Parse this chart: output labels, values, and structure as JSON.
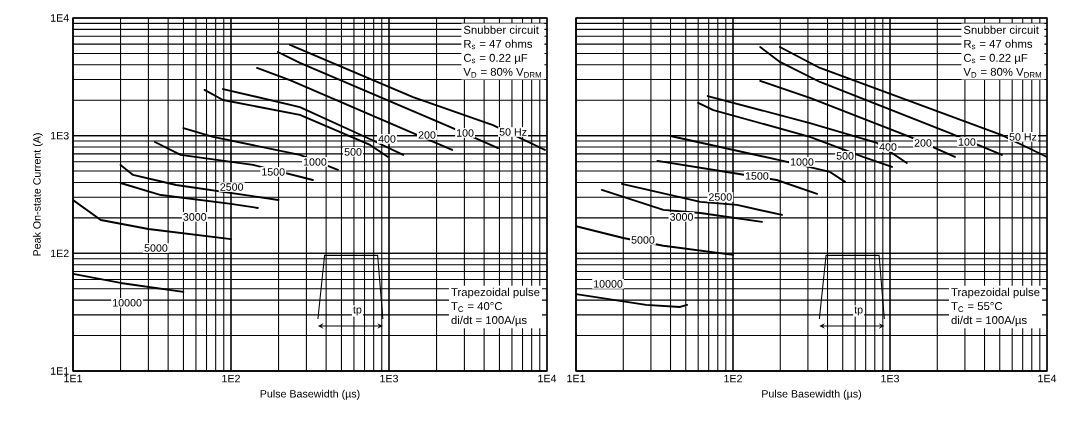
{
  "chart_data": [
    {
      "type": "line",
      "xlabel": "Pulse Basewidth (µs)",
      "ylabel": "Peak On-state Current (A)",
      "log": "xy",
      "grid": true,
      "marker": "none",
      "line_style": "solid",
      "xlim": [
        10,
        10000
      ],
      "ylim": [
        10,
        10000
      ],
      "xticks": [
        {
          "value": 10,
          "label": "1E1"
        },
        {
          "value": 100,
          "label": "1E2"
        },
        {
          "value": 1000,
          "label": "1E3"
        },
        {
          "value": 10000,
          "label": "1E4"
        }
      ],
      "yticks": [
        {
          "value": 10,
          "label": "1E1"
        },
        {
          "value": 100,
          "label": "1E2"
        },
        {
          "value": 1000,
          "label": "1E3"
        },
        {
          "value": 10000,
          "label": "1E4"
        }
      ],
      "series": [
        {
          "color": "#000000",
          "x": [
            10,
            20,
            50
          ],
          "values": [
            67,
            56,
            47
          ]
        },
        {
          "color": "#000000",
          "x": [
            10,
            15,
            30,
            100
          ],
          "values": [
            284,
            192,
            161,
            132
          ]
        },
        {
          "color": "#000000",
          "x": [
            20,
            36,
            100,
            148
          ],
          "values": [
            396,
            313,
            263,
            243
          ]
        },
        {
          "color": "#000000",
          "x": [
            20,
            24,
            45,
            200
          ],
          "values": [
            564,
            464,
            381,
            284
          ]
        },
        {
          "color": "#000000",
          "x": [
            33,
            48,
            138,
            330
          ],
          "values": [
            884,
            686,
            564,
            420
          ]
        },
        {
          "color": "#000000",
          "x": [
            50,
            77,
            273,
            475
          ],
          "values": [
            1160,
            976,
            686,
            512
          ]
        },
        {
          "color": "#000000",
          "x": [
            68,
            89,
            273,
            759,
            986
          ],
          "values": [
            2450,
            2010,
            1500,
            834,
            659
          ]
        },
        {
          "color": "#000000",
          "x": [
            89,
            273,
            780,
            1230
          ],
          "values": [
            2490,
            1750,
            919,
            686
          ]
        },
        {
          "color": "#000000",
          "x": [
            146,
            236,
            1420,
            2510
          ],
          "values": [
            3760,
            2970,
            1050,
            756
          ]
        },
        {
          "color": "#000000",
          "x": [
            198,
            273,
            2430,
            4900
          ],
          "values": [
            5140,
            4150,
            1190,
            785
          ]
        },
        {
          "color": "#000000",
          "x": [
            236,
            1420,
            4550,
            9700
          ],
          "values": [
            5900,
            2130,
            1230,
            756
          ]
        }
      ],
      "annotations": [
        {
          "text": "10000",
          "x": 22,
          "y": 38
        },
        {
          "text": "5000",
          "x": 33.5,
          "y": 111
        },
        {
          "text": "3000",
          "x": 59,
          "y": 204
        },
        {
          "text": "2500",
          "x": 101,
          "y": 366
        },
        {
          "text": "1500",
          "x": 185,
          "y": 492
        },
        {
          "text": "1000",
          "x": 340,
          "y": 598
        },
        {
          "text": "500",
          "x": 592,
          "y": 728
        },
        {
          "text": "400",
          "x": 971,
          "y": 938
        },
        {
          "text": "200",
          "x": 1740,
          "y": 1014
        },
        {
          "text": "100",
          "x": 3030,
          "y": 1054
        },
        {
          "text": "50 Hz",
          "x": 6100,
          "y": 1074
        },
        "Snubber circuit",
        "R$_{s}$ = 47 ohms",
        "C$_{s}$ = 0.22 µF",
        "V$_{D}$ = 80% V$_{DRM}$",
        "tp",
        "Trapezoidal pulse",
        "T$_{C}$ = 40°C",
        "di/dt = 100A/µs"
      ]
    },
    {
      "type": "line",
      "xlabel": "Pulse Basewidth (µs)",
      "log": "xy",
      "grid": true,
      "marker": "none",
      "line_style": "solid",
      "tick_labels": "x",
      "xlim": [
        10,
        10000
      ],
      "ylim": [
        10,
        10000
      ],
      "xticks": [
        {
          "value": 10,
          "label": "1E1"
        },
        {
          "value": 100,
          "label": "1E2"
        },
        {
          "value": 1000,
          "label": "1E3"
        },
        {
          "value": 10000,
          "label": "1E4"
        }
      ],
      "yticks": [
        {
          "value": 10,
          "label": null
        },
        {
          "value": 100,
          "label": null
        },
        {
          "value": 1000,
          "label": null
        },
        {
          "value": 10000,
          "label": null
        }
      ],
      "series": [
        {
          "color": "#000000",
          "x": [
            10,
            28,
            46,
            51
          ],
          "values": [
            45,
            36.5,
            35,
            36.5
          ]
        },
        {
          "color": "#000000",
          "x": [
            10,
            20,
            36,
            100
          ],
          "values": [
            170,
            135,
            116,
            97
          ]
        },
        {
          "color": "#000000",
          "x": [
            14.6,
            36,
            62,
            153
          ],
          "values": [
            346,
            234,
            220,
            185
          ]
        },
        {
          "color": "#000000",
          "x": [
            19.6,
            62,
            106,
            205
          ],
          "values": [
            389,
            274,
            258,
            212
          ]
        },
        {
          "color": "#000000",
          "x": [
            33,
            100,
            190,
            343
          ],
          "values": [
            610,
            482,
            420,
            320
          ]
        },
        {
          "color": "#000000",
          "x": [
            40,
            208,
            415,
            517
          ],
          "values": [
            994,
            610,
            492,
            405
          ]
        },
        {
          "color": "#000000",
          "x": [
            60,
            75,
            309,
            673,
            1030
          ],
          "values": [
            1900,
            1650,
            976,
            659,
            542
          ]
        },
        {
          "color": "#000000",
          "x": [
            69,
            309,
            826,
            1280
          ],
          "values": [
            2170,
            1280,
            867,
            586
          ]
        },
        {
          "color": "#000000",
          "x": [
            149,
            309,
            1340,
            2590
          ],
          "values": [
            2920,
            2090,
            976,
            659
          ]
        },
        {
          "color": "#000000",
          "x": [
            149,
            199,
            358,
            2410,
            5160
          ],
          "values": [
            5670,
            4230,
            2860,
            1050,
            686
          ]
        },
        {
          "color": "#000000",
          "x": [
            199,
            358,
            5160,
            10000
          ],
          "values": [
            5670,
            3760,
            1010,
            659
          ]
        }
      ],
      "annotations": [
        {
          "text": "10000",
          "x": 16,
          "y": 55
        },
        {
          "text": "5000",
          "x": 26.7,
          "y": 130
        },
        {
          "text": "3000",
          "x": 47,
          "y": 204
        },
        {
          "text": "2500",
          "x": 83,
          "y": 301
        },
        {
          "text": "1500",
          "x": 142,
          "y": 455
        },
        {
          "text": "1000",
          "x": 275,
          "y": 598
        },
        {
          "text": "500",
          "x": 517,
          "y": 673
        },
        {
          "text": "400",
          "x": 971,
          "y": 802
        },
        {
          "text": "200",
          "x": 1622,
          "y": 867
        },
        {
          "text": "100",
          "x": 3090,
          "y": 884
        },
        {
          "text": "50 Hz",
          "x": 7030,
          "y": 976
        },
        "Snubber circuit",
        "R$_{s}$ = 47 ohms",
        "C$_{s}$ = 0.22 µF",
        "V$_{D}$ = 80% V$_{DRM}$",
        "tp",
        "Trapezoidal pulse",
        "T$_{C}$ = 55°C",
        "di/dt = 100A/µs"
      ]
    }
  ]
}
